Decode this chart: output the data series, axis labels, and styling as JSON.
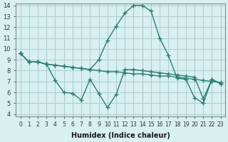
{
  "xlabel": "Humidex (Indice chaleur)",
  "x_values": [
    0,
    1,
    2,
    3,
    4,
    5,
    6,
    7,
    8,
    9,
    10,
    11,
    12,
    13,
    14,
    15,
    16,
    17,
    18,
    19,
    20,
    21,
    22,
    23
  ],
  "line1_y": [
    9.6,
    8.8,
    8.8,
    8.6,
    8.5,
    8.4,
    8.3,
    8.2,
    8.1,
    9.0,
    10.8,
    12.1,
    13.3,
    14.0,
    14.0,
    13.5,
    11.0,
    9.4,
    7.3,
    7.2,
    5.5,
    5.0,
    7.2,
    6.8
  ],
  "line2_y": [
    9.6,
    8.8,
    8.8,
    8.6,
    8.5,
    8.4,
    8.3,
    8.2,
    8.1,
    8.0,
    7.9,
    7.9,
    7.8,
    7.7,
    7.7,
    7.6,
    7.5,
    7.5,
    7.4,
    7.3,
    7.2,
    7.1,
    7.0,
    6.9
  ],
  "line3_y": [
    9.6,
    8.8,
    8.8,
    8.6,
    7.1,
    6.0,
    5.9,
    5.3,
    7.2,
    5.9,
    4.6,
    5.8,
    8.1,
    8.1,
    8.0,
    7.9,
    7.8,
    7.7,
    7.6,
    7.5,
    7.4,
    5.4,
    7.2,
    6.8
  ],
  "line_color": "#2e7d72",
  "bg_color": "#d8f0f0",
  "grid_color": "#b0d0d0",
  "ylim": [
    4,
    14
  ],
  "xlim": [
    0,
    23
  ],
  "yticks": [
    4,
    5,
    6,
    7,
    8,
    9,
    10,
    11,
    12,
    13,
    14
  ],
  "xticks": [
    0,
    1,
    2,
    3,
    4,
    5,
    6,
    7,
    8,
    9,
    10,
    11,
    12,
    13,
    14,
    15,
    16,
    17,
    18,
    19,
    20,
    21,
    22,
    23
  ]
}
